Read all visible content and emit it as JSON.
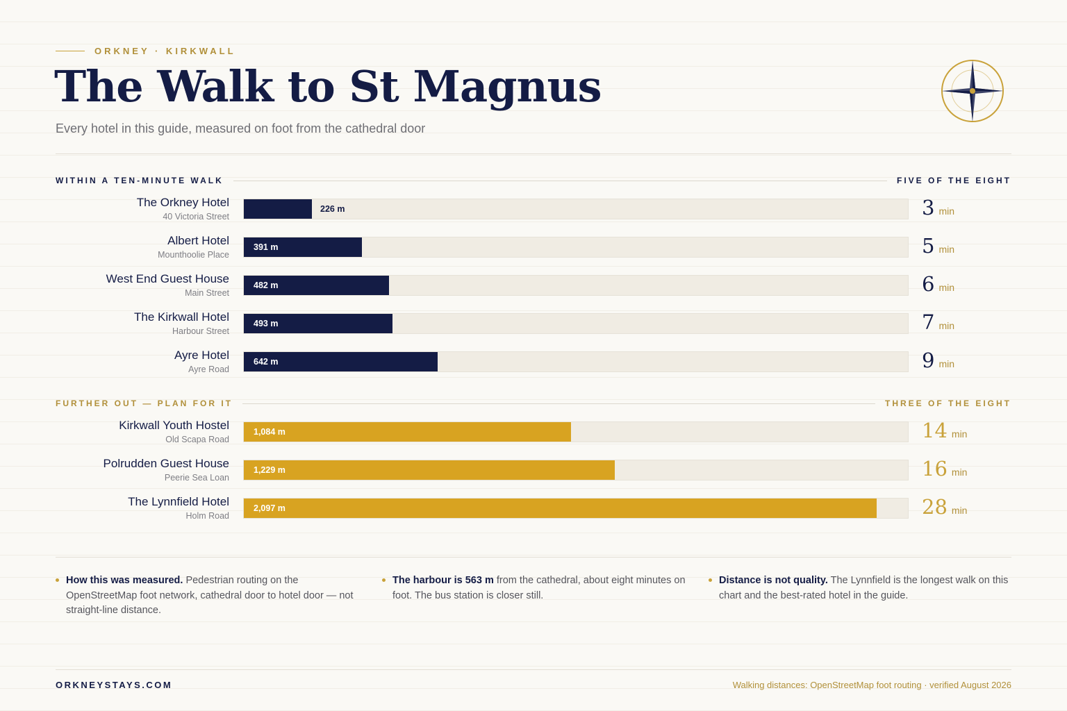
{
  "header": {
    "kicker": "ORKNEY · KIRKWALL",
    "title": "The Walk to St Magnus",
    "subtitle": "Every hotel in this guide, measured on foot from the cathedral door",
    "icon": "compass-rose-icon"
  },
  "sections": {
    "near": {
      "label": "WITHIN A TEN-MINUTE WALK",
      "count": "FIVE OF THE EIGHT"
    },
    "far": {
      "label": "FURTHER OUT — PLAN FOR IT",
      "count": "THREE OF THE EIGHT"
    }
  },
  "min_label": "min",
  "colors": {
    "near": "#141c45",
    "far": "#d8a321",
    "track": "#f0ece3",
    "accent": "#c9a23a"
  },
  "chart_data": {
    "type": "bar",
    "orientation": "horizontal",
    "title": "The Walk to St Magnus",
    "x_unit": "m",
    "xlim": [
      0,
      2200
    ],
    "categories": [
      "The Orkney Hotel",
      "Albert Hotel",
      "West End Guest House",
      "The Kirkwall Hotel",
      "Ayre Hotel",
      "Kirkwall Youth Hostel",
      "Polrudden Guest House",
      "The Lynnfield Hotel"
    ],
    "rows": [
      {
        "name": "The Orkney Hotel",
        "address": "40 Victoria Street",
        "meters": 226,
        "label": "226 m",
        "minutes": "3",
        "group": "near"
      },
      {
        "name": "Albert Hotel",
        "address": "Mounthoolie Place",
        "meters": 391,
        "label": "391 m",
        "minutes": "5",
        "group": "near"
      },
      {
        "name": "West End Guest House",
        "address": "Main Street",
        "meters": 482,
        "label": "482 m",
        "minutes": "6",
        "group": "near"
      },
      {
        "name": "The Kirkwall Hotel",
        "address": "Harbour Street",
        "meters": 493,
        "label": "493 m",
        "minutes": "7",
        "group": "near"
      },
      {
        "name": "Ayre Hotel",
        "address": "Ayre Road",
        "meters": 642,
        "label": "642 m",
        "minutes": "9",
        "group": "near"
      },
      {
        "name": "Kirkwall Youth Hostel",
        "address": "Old Scapa Road",
        "meters": 1084,
        "label": "1,084 m",
        "minutes": "14",
        "group": "far"
      },
      {
        "name": "Polrudden Guest House",
        "address": "Peerie Sea Loan",
        "meters": 1229,
        "label": "1,229 m",
        "minutes": "16",
        "group": "far"
      },
      {
        "name": "The Lynnfield Hotel",
        "address": "Holm Road",
        "meters": 2097,
        "label": "2,097 m",
        "minutes": "28",
        "group": "far"
      }
    ]
  },
  "notes": [
    {
      "bold": "How this was measured.",
      "text": " Pedestrian routing on the OpenStreetMap foot network, cathedral door to hotel door — not straight-line distance."
    },
    {
      "bold": "The harbour is 563 m",
      "text": " from the cathedral, about eight minutes on foot. The bus station is closer still."
    },
    {
      "bold": "Distance is not quality.",
      "text": " The Lynnfield is the longest walk on this chart and the best-rated hotel in the guide."
    }
  ],
  "footer": {
    "brand": "ORKNEYSTAYS.COM",
    "source": "Walking distances: OpenStreetMap foot routing · verified August 2026"
  }
}
